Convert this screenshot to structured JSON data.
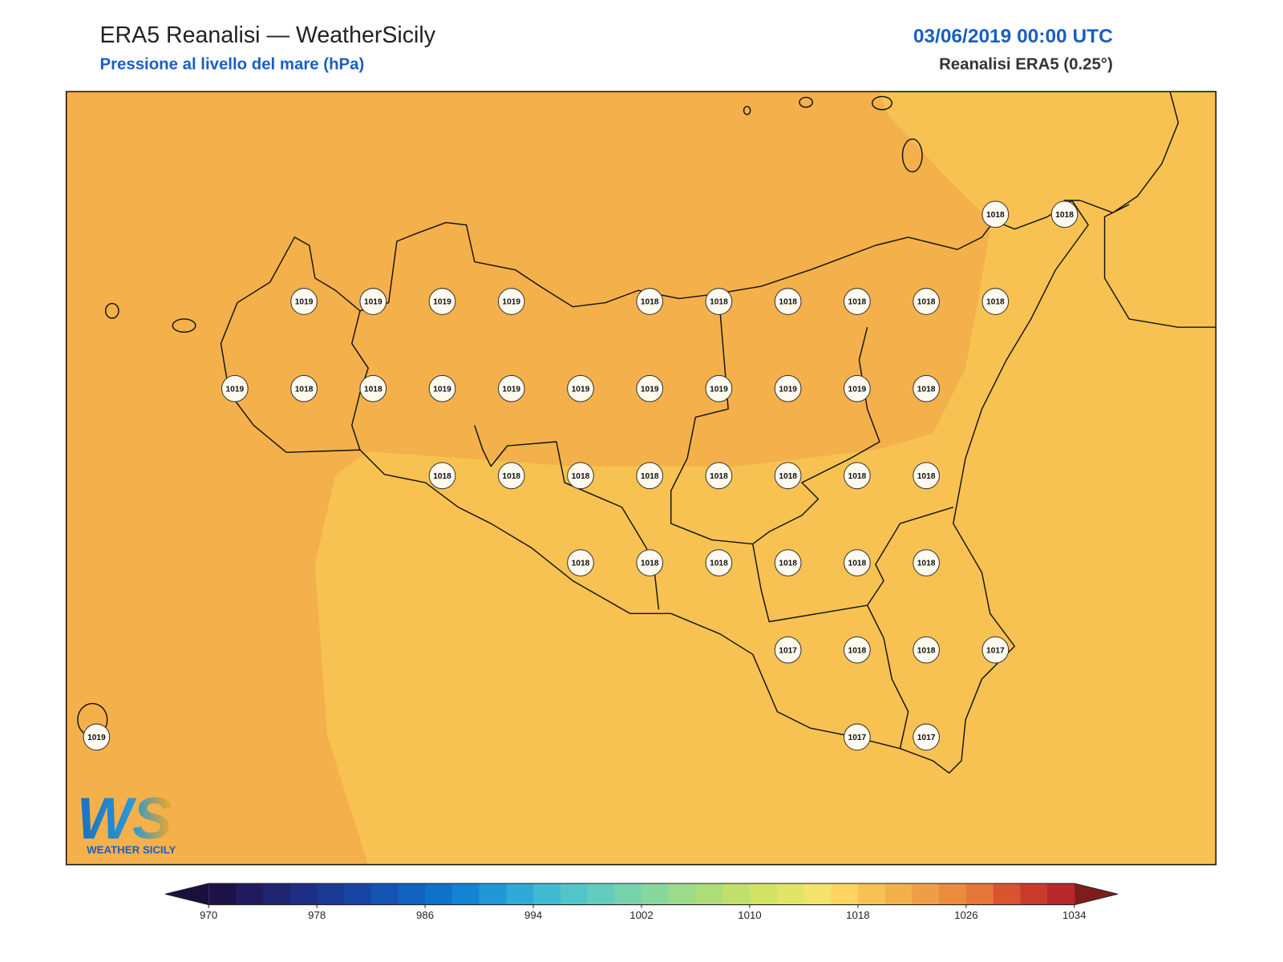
{
  "header": {
    "title": "ERA5 Reanalisi — WeatherSicily",
    "subtitle": "Pressione al livello del mare (hPa)",
    "datetime": "03/06/2019 00:00 UTC",
    "source": "Reanalisi ERA5 (0.25°)"
  },
  "logo": {
    "mark": "WS",
    "text": "WEATHER SICILY"
  },
  "stations": [
    {
      "value": 1018
    },
    {
      "value": 1018
    },
    {
      "value": 1019
    },
    {
      "value": 1019
    },
    {
      "value": 1019
    },
    {
      "value": 1019
    },
    {
      "value": 1018
    },
    {
      "value": 1018
    },
    {
      "value": 1018
    },
    {
      "value": 1018
    },
    {
      "value": 1018
    },
    {
      "value": 1018
    },
    {
      "value": 1019
    },
    {
      "value": 1018
    },
    {
      "value": 1018
    },
    {
      "value": 1019
    },
    {
      "value": 1019
    },
    {
      "value": 1019
    },
    {
      "value": 1019
    },
    {
      "value": 1019
    },
    {
      "value": 1019
    },
    {
      "value": 1019
    },
    {
      "value": 1018
    },
    {
      "value": 1018
    },
    {
      "value": 1018
    },
    {
      "value": 1018
    },
    {
      "value": 1018
    },
    {
      "value": 1018
    },
    {
      "value": 1018
    },
    {
      "value": 1018
    },
    {
      "value": 1018
    },
    {
      "value": 1018
    },
    {
      "value": 1018
    },
    {
      "value": 1018
    },
    {
      "value": 1018
    },
    {
      "value": 1018
    },
    {
      "value": 1018
    },
    {
      "value": 1017
    },
    {
      "value": 1018
    },
    {
      "value": 1018
    },
    {
      "value": 1017
    },
    {
      "value": 1019
    },
    {
      "value": 1017
    },
    {
      "value": 1017
    }
  ],
  "colorbar": {
    "lim": [
      970,
      1034
    ],
    "ticks": [
      970,
      978,
      986,
      994,
      1002,
      1010,
      1018,
      1026,
      1034
    ],
    "colors": [
      "#1d1148",
      "#211a5e",
      "#1f2470",
      "#1d2f85",
      "#1a3995",
      "#1745a5",
      "#1452b4",
      "#1061c2",
      "#0d72cc",
      "#1384d3",
      "#2097d6",
      "#2faad6",
      "#3fbad3",
      "#51c6c9",
      "#63ccbc",
      "#76d2ad",
      "#88d79c",
      "#9bdb89",
      "#addd77",
      "#bfe06a",
      "#d1e265",
      "#e2e468",
      "#f3e36b",
      "#fbd560",
      "#f7c251",
      "#f4b04a",
      "#f09e43",
      "#ec8b3c",
      "#e67637",
      "#d9532f",
      "#cb3b2c",
      "#b8282a"
    ],
    "under": "#1a0f3d",
    "over": "#7f1d1d"
  }
}
